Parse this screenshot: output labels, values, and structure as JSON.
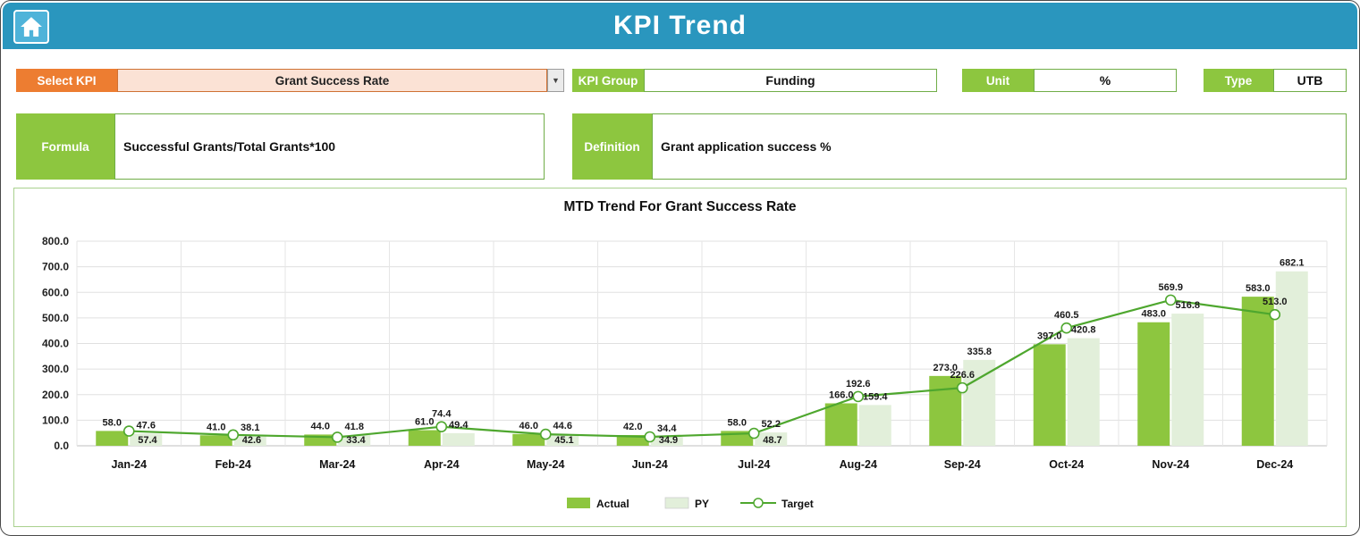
{
  "header": {
    "title": "KPI Trend"
  },
  "selectors": {
    "select_kpi_label": "Select KPI",
    "select_kpi_value": "Grant Success Rate",
    "kpi_group_label": "KPI Group",
    "kpi_group_value": "Funding",
    "unit_label": "Unit",
    "unit_value": "%",
    "type_label": "Type",
    "type_value": "UTB",
    "formula_label": "Formula",
    "formula_value": "Successful Grants/Total Grants*100",
    "definition_label": "Definition",
    "definition_value": "Grant application success %"
  },
  "icons": {
    "dropdown_arrow": "▼"
  },
  "colors": {
    "header_teal": "#2a96be",
    "accent_orange": "#ed7d31",
    "accent_green": "#8dc63f",
    "border_green": "#70ad47",
    "actual_bar": "#8dc63f",
    "py_bar": "#e2efda",
    "target_line": "#4ea72e"
  },
  "chart_data": {
    "type": "bar",
    "title": "MTD Trend For Grant Success Rate",
    "categories": [
      "Jan-24",
      "Feb-24",
      "Mar-24",
      "Apr-24",
      "May-24",
      "Jun-24",
      "Jul-24",
      "Aug-24",
      "Sep-24",
      "Oct-24",
      "Nov-24",
      "Dec-24"
    ],
    "series": [
      {
        "name": "Actual",
        "type": "bar",
        "color": "#8dc63f",
        "values": [
          58.0,
          41.0,
          44.0,
          61.0,
          46.0,
          42.0,
          58.0,
          166.0,
          273.0,
          397.0,
          483.0,
          583.0
        ]
      },
      {
        "name": "PY",
        "type": "bar",
        "color": "#e2efda",
        "values": [
          47.6,
          38.1,
          41.8,
          49.4,
          44.6,
          34.4,
          52.2,
          159.4,
          335.8,
          420.8,
          516.8,
          682.1
        ]
      },
      {
        "name": "Target",
        "type": "line",
        "color": "#4ea72e",
        "values": [
          57.4,
          42.6,
          33.4,
          74.4,
          45.1,
          34.9,
          48.7,
          192.6,
          226.6,
          460.5,
          569.9,
          513.0
        ]
      }
    ],
    "xlabel": "",
    "ylabel": "",
    "ylim": [
      0,
      800
    ],
    "ytick_step": 100,
    "grid": true,
    "legend_position": "bottom"
  }
}
